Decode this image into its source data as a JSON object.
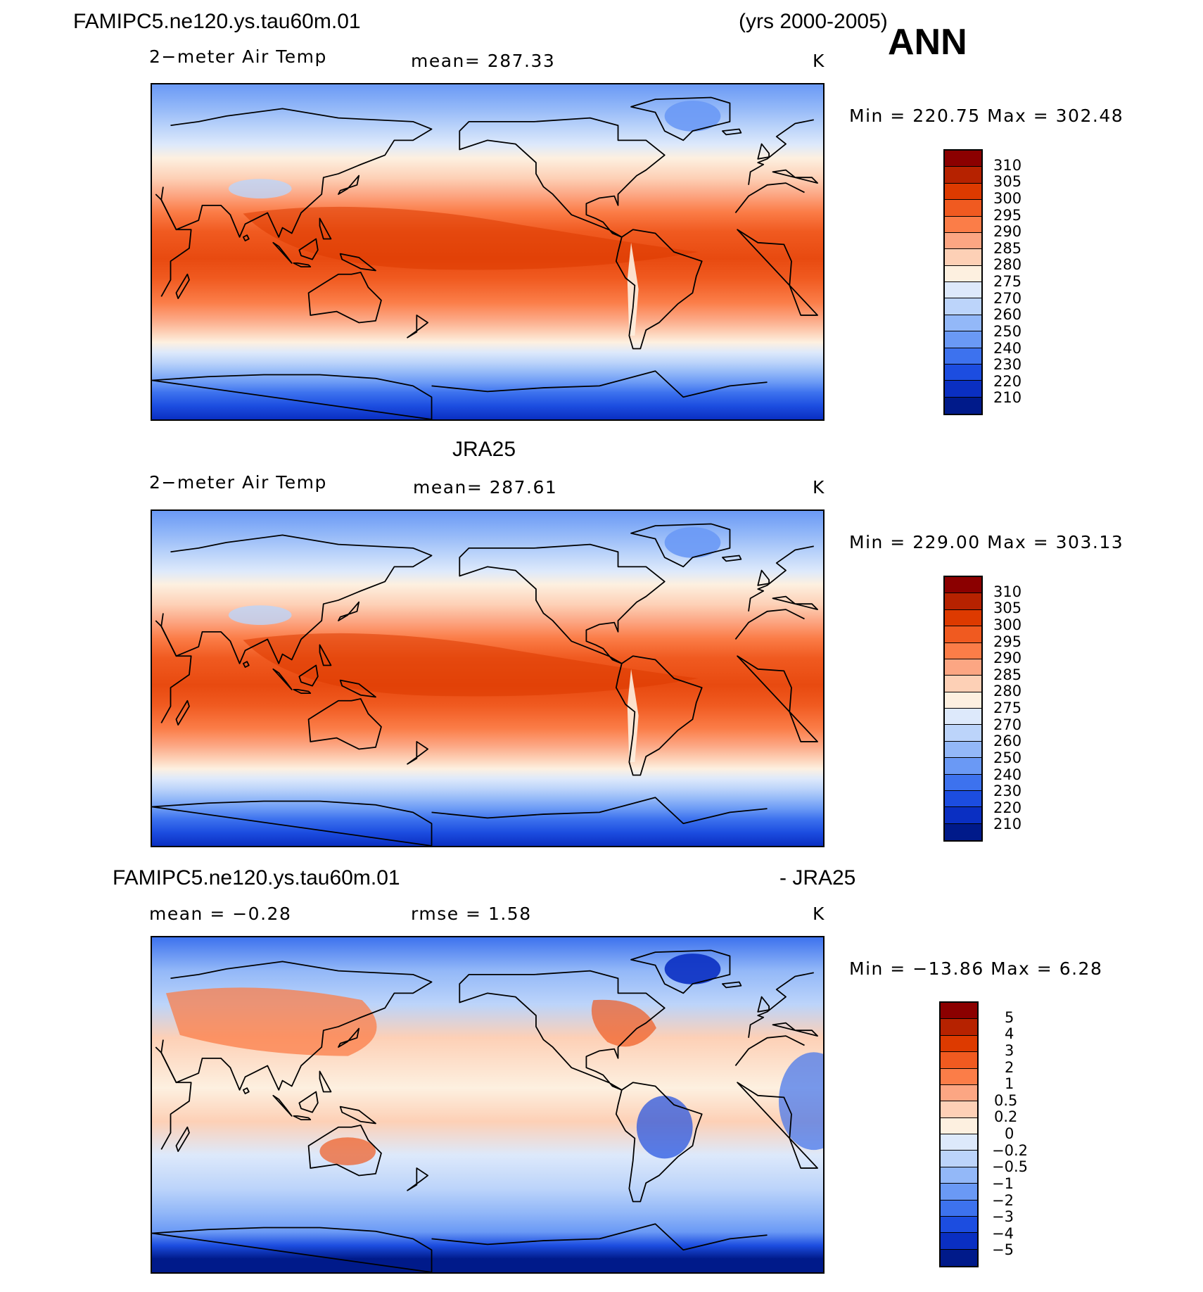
{
  "header": {
    "case_name": "FAMIPC5.ne120.ys.tau60m.01",
    "years": "(yrs 2000-2005)",
    "season": "ANN"
  },
  "panels": [
    {
      "title": "",
      "variable": "2−meter Air Temp",
      "mean_text": "mean=  287.33",
      "units": "K",
      "range_text": "Min  =  220.75  Max  =  302.48",
      "field_type": "temperature"
    },
    {
      "title": "JRA25",
      "variable": "2−meter Air Temp",
      "mean_text": "mean=  287.61",
      "units": "K",
      "range_text": "Min  =  229.00  Max  =  303.13",
      "field_type": "temperature"
    },
    {
      "title": "FAMIPC5.ne120.ys.tau60m.01",
      "title_right": "- JRA25",
      "mean_text": "mean  =    −0.28",
      "rmse_text": "rmse  =      1.58",
      "units": "K",
      "range_text": "Min  =  −13.86  Max  =      6.28",
      "field_type": "difference"
    }
  ],
  "colorbars": {
    "temperature": {
      "labels": [
        "310",
        "305",
        "300",
        "295",
        "290",
        "285",
        "280",
        "275",
        "270",
        "260",
        "250",
        "240",
        "230",
        "220",
        "210"
      ],
      "colors": [
        "#8b0000",
        "#b62200",
        "#dd3a00",
        "#f05a20",
        "#fb7d48",
        "#fca683",
        "#fdd0b6",
        "#fdf0e0",
        "#dde9fb",
        "#bcd4fa",
        "#93b8f8",
        "#6a99f5",
        "#3d72ee",
        "#1c4de0",
        "#0a2fc2",
        "#001a8a"
      ]
    },
    "difference": {
      "labels": [
        "5",
        "4",
        "3",
        "2",
        "1",
        "0.5",
        "0.2",
        "0",
        "−0.2",
        "−0.5",
        "−1",
        "−2",
        "−3",
        "−4",
        "−5"
      ],
      "colors": [
        "#8b0000",
        "#b62200",
        "#dd3a00",
        "#f05a20",
        "#fb7d48",
        "#fca683",
        "#fdd0b6",
        "#fdf0e0",
        "#dde9fb",
        "#bcd4fa",
        "#93b8f8",
        "#6a99f5",
        "#3d72ee",
        "#1c4de0",
        "#0a2fc2",
        "#001a8a"
      ]
    }
  }
}
